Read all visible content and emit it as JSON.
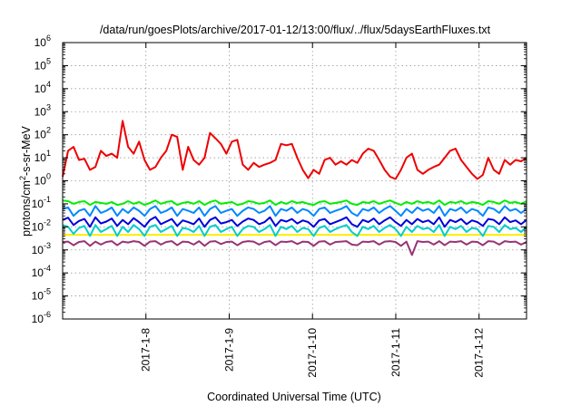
{
  "chart_data": {
    "type": "line",
    "title": "/data/run/goesPlots/archive/2017-01-12/13:00/flux/../flux/5daysEarthFluxes.txt",
    "xlabel": "Coordinated Universal Time (UTC)",
    "ylabel": {
      "prefix": "protons/cm",
      "sup": "2",
      "suffix": "-s-sr-MeV"
    },
    "yscale": "log",
    "ylim_exponents": [
      -6,
      6
    ],
    "y_tick_labels": [
      {
        "base": "10",
        "exp": "-6"
      },
      {
        "base": "10",
        "exp": "-5"
      },
      {
        "base": "10",
        "exp": "-4"
      },
      {
        "base": "10",
        "exp": "-3"
      },
      {
        "base": "10",
        "exp": "-2"
      },
      {
        "base": "10",
        "exp": "-1"
      },
      {
        "base": "10",
        "exp": "0"
      },
      {
        "base": "10",
        "exp": "1"
      },
      {
        "base": "10",
        "exp": "2"
      },
      {
        "base": "10",
        "exp": "3"
      },
      {
        "base": "10",
        "exp": "4"
      },
      {
        "base": "10",
        "exp": "5"
      },
      {
        "base": "10",
        "exp": "6"
      }
    ],
    "xlim_days": [
      7.0,
      12.57
    ],
    "x_ticks": [
      {
        "day": 8,
        "label": "2017-1-8"
      },
      {
        "day": 9,
        "label": "2017-1-9"
      },
      {
        "day": 10,
        "label": "2017-1-10"
      },
      {
        "day": 11,
        "label": "2017-1-11"
      },
      {
        "day": 12,
        "label": "2017-1-12"
      }
    ],
    "grid": true,
    "legend": "none",
    "series": [
      {
        "color": "#ee0000",
        "y": [
          1.5,
          20,
          30,
          8,
          9,
          3,
          4,
          20,
          12,
          15,
          10,
          400,
          30,
          15,
          50,
          8,
          3,
          4,
          10,
          20,
          100,
          80,
          3,
          30,
          8,
          5,
          10,
          120,
          70,
          40,
          15,
          50,
          60,
          5,
          3,
          6,
          4,
          5,
          6,
          8,
          40,
          35,
          40,
          10,
          3,
          1.3,
          3,
          2,
          8,
          10,
          5,
          7,
          5,
          8,
          6,
          15,
          25,
          20,
          8,
          3,
          1.5,
          1.2,
          3,
          10,
          15,
          3,
          2,
          3,
          4,
          5,
          10,
          20,
          25,
          8,
          4,
          2,
          1.2,
          1.8,
          10,
          3,
          2,
          8,
          5,
          8,
          7,
          10
        ]
      },
      {
        "color": "#00ee00",
        "y": [
          0.14,
          0.13,
          0.1,
          0.12,
          0.13,
          0.09,
          0.12,
          0.11,
          0.1,
          0.12,
          0.09,
          0.1,
          0.13,
          0.1,
          0.12,
          0.09,
          0.11,
          0.14,
          0.1,
          0.12,
          0.13,
          0.09,
          0.11,
          0.12,
          0.1,
          0.13,
          0.09,
          0.12,
          0.14,
          0.1,
          0.11,
          0.12,
          0.09,
          0.1,
          0.13,
          0.12,
          0.1,
          0.11,
          0.14,
          0.09,
          0.12,
          0.1,
          0.13,
          0.11,
          0.12,
          0.1,
          0.09,
          0.12,
          0.13,
          0.1,
          0.11,
          0.12,
          0.14,
          0.1,
          0.09,
          0.12,
          0.11,
          0.13,
          0.1,
          0.12,
          0.14,
          0.11,
          0.09,
          0.12,
          0.1,
          0.13,
          0.11,
          0.12,
          0.1,
          0.14,
          0.09,
          0.12,
          0.11,
          0.13,
          0.1,
          0.12,
          0.11,
          0.09,
          0.13,
          0.12,
          0.1,
          0.14,
          0.11,
          0.12,
          0.1,
          0.13
        ]
      },
      {
        "color": "#0088ff",
        "y": [
          0.06,
          0.07,
          0.03,
          0.05,
          0.06,
          0.03,
          0.08,
          0.04,
          0.05,
          0.07,
          0.03,
          0.06,
          0.04,
          0.07,
          0.05,
          0.03,
          0.06,
          0.08,
          0.04,
          0.05,
          0.07,
          0.03,
          0.06,
          0.05,
          0.04,
          0.07,
          0.03,
          0.06,
          0.08,
          0.04,
          0.05,
          0.06,
          0.03,
          0.05,
          0.07,
          0.06,
          0.04,
          0.05,
          0.08,
          0.03,
          0.06,
          0.05,
          0.07,
          0.04,
          0.06,
          0.05,
          0.03,
          0.06,
          0.07,
          0.04,
          0.05,
          0.06,
          0.08,
          0.04,
          0.03,
          0.06,
          0.05,
          0.07,
          0.04,
          0.06,
          0.08,
          0.05,
          0.03,
          0.06,
          0.04,
          0.07,
          0.05,
          0.06,
          0.04,
          0.08,
          0.03,
          0.06,
          0.05,
          0.07,
          0.04,
          0.06,
          0.05,
          0.03,
          0.07,
          0.06,
          0.04,
          0.08,
          0.05,
          0.06,
          0.04,
          0.06
        ]
      },
      {
        "color": "#0000dd",
        "y": [
          0.02,
          0.025,
          0.012,
          0.018,
          0.022,
          0.01,
          0.026,
          0.014,
          0.017,
          0.023,
          0.011,
          0.02,
          0.013,
          0.024,
          0.016,
          0.01,
          0.02,
          0.027,
          0.013,
          0.017,
          0.022,
          0.011,
          0.019,
          0.016,
          0.013,
          0.023,
          0.01,
          0.02,
          0.026,
          0.014,
          0.016,
          0.02,
          0.011,
          0.017,
          0.023,
          0.02,
          0.013,
          0.016,
          0.026,
          0.011,
          0.02,
          0.017,
          0.022,
          0.014,
          0.019,
          0.016,
          0.01,
          0.019,
          0.022,
          0.013,
          0.016,
          0.02,
          0.026,
          0.013,
          0.01,
          0.02,
          0.016,
          0.023,
          0.013,
          0.019,
          0.026,
          0.016,
          0.011,
          0.02,
          0.013,
          0.022,
          0.016,
          0.019,
          0.013,
          0.026,
          0.01,
          0.02,
          0.016,
          0.022,
          0.013,
          0.019,
          0.016,
          0.011,
          0.022,
          0.02,
          0.013,
          0.026,
          0.016,
          0.019,
          0.013,
          0.02
        ]
      },
      {
        "color": "#00cccc",
        "y": [
          0.012,
          0.01,
          0.005,
          0.009,
          0.011,
          0.004,
          0.012,
          0.006,
          0.008,
          0.011,
          0.004,
          0.01,
          0.006,
          0.012,
          0.008,
          0.004,
          0.01,
          0.012,
          0.006,
          0.008,
          0.011,
          0.004,
          0.009,
          0.008,
          0.006,
          0.011,
          0.004,
          0.01,
          0.012,
          0.006,
          0.008,
          0.01,
          0.004,
          0.008,
          0.011,
          0.01,
          0.006,
          0.008,
          0.012,
          0.004,
          0.01,
          0.008,
          0.011,
          0.006,
          0.009,
          0.008,
          0.004,
          0.009,
          0.011,
          0.006,
          0.008,
          0.01,
          0.012,
          0.006,
          0.004,
          0.01,
          0.008,
          0.011,
          0.006,
          0.009,
          0.012,
          0.008,
          0.004,
          0.01,
          0.006,
          0.011,
          0.008,
          0.009,
          0.006,
          0.012,
          0.004,
          0.01,
          0.008,
          0.011,
          0.006,
          0.009,
          0.008,
          0.004,
          0.011,
          0.01,
          0.006,
          0.012,
          0.008,
          0.009,
          0.006,
          0.01
        ]
      },
      {
        "color": "#ffee00",
        "y": [
          0.0045,
          0.0045,
          0.0045,
          0.0045,
          0.0045,
          0.0045,
          0.0045,
          0.0045,
          0.0045,
          0.0045,
          0.0045,
          0.0045,
          0.0045,
          0.0045,
          0.0045,
          0.0045,
          0.0045,
          0.0045,
          0.0045,
          0.0045,
          0.0045,
          0.0045,
          0.0045,
          0.0045,
          0.0045,
          0.0045,
          0.0045,
          0.0045,
          0.0045,
          0.0045,
          0.0045,
          0.0045,
          0.0045,
          0.0045,
          0.0045,
          0.0045,
          0.0045,
          0.0045,
          0.0045,
          0.0045,
          0.0045,
          0.0045,
          0.0045,
          0.0045,
          0.0045,
          0.0045,
          0.0045,
          0.0045,
          0.0045,
          0.0045,
          0.0045,
          0.0045,
          0.0045,
          0.0045,
          0.0045,
          0.0045,
          0.0045,
          0.0045,
          0.0045,
          0.0045,
          0.0045,
          0.0045,
          0.0045,
          0.0045,
          0.0045,
          0.0045,
          0.0045,
          0.0045,
          0.0045,
          0.0045,
          0.0045,
          0.0045,
          0.0045,
          0.0045,
          0.0045,
          0.0045,
          0.0045,
          0.0045,
          0.0045,
          0.0045,
          0.0045,
          0.0045,
          0.0045,
          0.0045,
          0.0045,
          0.0045
        ]
      },
      {
        "color": "#993377",
        "y": [
          0.0022,
          0.0023,
          0.0016,
          0.0022,
          0.0024,
          0.0015,
          0.0023,
          0.0017,
          0.0022,
          0.0024,
          0.0016,
          0.0023,
          0.0021,
          0.0024,
          0.0022,
          0.0015,
          0.0023,
          0.0024,
          0.0017,
          0.0022,
          0.0024,
          0.0016,
          0.0023,
          0.0022,
          0.0017,
          0.0024,
          0.0015,
          0.0023,
          0.0024,
          0.0018,
          0.0022,
          0.0023,
          0.0016,
          0.0022,
          0.0024,
          0.0023,
          0.0017,
          0.0022,
          0.0024,
          0.0016,
          0.0023,
          0.0022,
          0.0024,
          0.0018,
          0.0023,
          0.0022,
          0.0015,
          0.0023,
          0.0024,
          0.0017,
          0.0022,
          0.0023,
          0.0024,
          0.0017,
          0.0016,
          0.0023,
          0.0022,
          0.0024,
          0.0017,
          0.0023,
          0.0024,
          0.0022,
          0.0015,
          0.0023,
          0.0006,
          0.0024,
          0.0022,
          0.0023,
          0.0017,
          0.0024,
          0.0016,
          0.0023,
          0.0022,
          0.0024,
          0.0017,
          0.0023,
          0.0022,
          0.0016,
          0.0024,
          0.0023,
          0.0017,
          0.0024,
          0.0022,
          0.0023,
          0.0017,
          0.0022
        ]
      }
    ]
  }
}
